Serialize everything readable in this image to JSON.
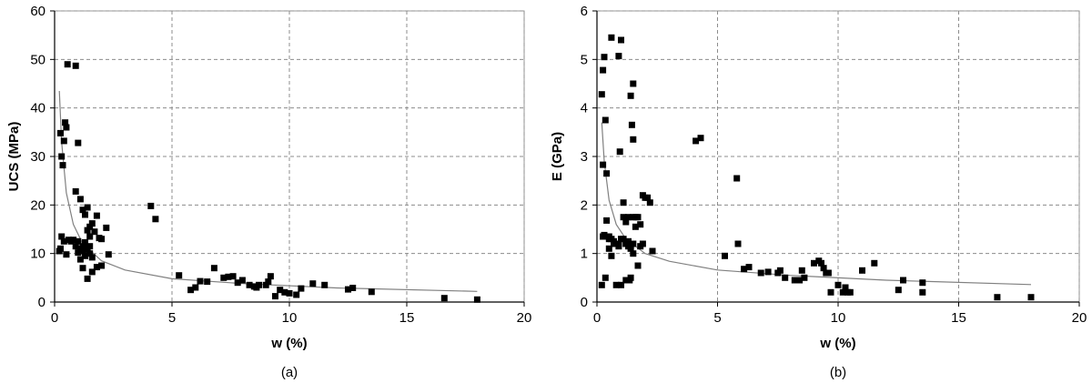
{
  "chart_data": [
    {
      "type": "scatter",
      "caption": "(a)",
      "xlabel": "w (%)",
      "ylabel": "UCS (MPa)",
      "xlim": [
        0,
        20
      ],
      "ylim": [
        0,
        60
      ],
      "xticks": [
        0,
        5,
        10,
        15,
        20
      ],
      "yticks": [
        0,
        10,
        20,
        30,
        40,
        50,
        60
      ],
      "grid": true,
      "trendline": {
        "type": "power",
        "color": "#808080",
        "x": [
          0.2,
          0.3,
          0.5,
          0.8,
          1.2,
          2,
          3,
          5,
          8,
          12,
          18
        ],
        "y": [
          43.5,
          33,
          22.5,
          16,
          12,
          8.5,
          6.6,
          4.8,
          3.8,
          2.9,
          2.2
        ]
      },
      "series": [
        {
          "marker": "square",
          "color": "#000000",
          "x": [
            0.25,
            0.3,
            0.35,
            0.4,
            0.45,
            0.5,
            0.55,
            0.9,
            1.0,
            0.2,
            0.25,
            0.3,
            0.4,
            0.5,
            0.6,
            0.7,
            0.8,
            0.9,
            1.0,
            1.1,
            1.2,
            1.3,
            1.5,
            0.9,
            1.1,
            1.2,
            1.3,
            1.4,
            1.5,
            1.6,
            1.7,
            1.8,
            1.9,
            2.0,
            2.2,
            1.0,
            1.1,
            1.2,
            1.3,
            1.4,
            1.5,
            1.6,
            1.2,
            1.3,
            1.4,
            1.5,
            1.6,
            1.8,
            2.0,
            2.3,
            1.4,
            4.1,
            4.3,
            5.3,
            5.8,
            6.0,
            6.2,
            6.5,
            6.8,
            7.2,
            7.4,
            7.6,
            7.8,
            8.0,
            8.3,
            8.5,
            8.7,
            9.0,
            9.2,
            9.4,
            9.6,
            9.8,
            10.0,
            10.3,
            10.5,
            11.0,
            11.5,
            12.5,
            12.7,
            13.5,
            16.6,
            18.0,
            8.6,
            9.1
          ],
          "y": [
            34.8,
            30,
            28.2,
            33.2,
            37,
            36,
            49,
            48.7,
            32.8,
            10.5,
            11,
            13.5,
            12.5,
            9.8,
            12.8,
            12.5,
            12.8,
            11.5,
            12.5,
            11,
            10.5,
            12,
            11.5,
            22.8,
            21.2,
            19,
            18,
            19.5,
            15.5,
            16.2,
            14.5,
            17.8,
            13.2,
            13,
            15.3,
            10.2,
            8.8,
            7,
            9.5,
            10.8,
            10,
            9.2,
            11.5,
            12.3,
            14.8,
            13.5,
            6.2,
            7.2,
            7.5,
            9.8,
            4.8,
            19.8,
            17.1,
            5.5,
            2.5,
            3,
            4.3,
            4.2,
            7,
            5,
            5.2,
            5.3,
            4,
            4.5,
            3.5,
            3.2,
            3.5,
            3.5,
            5.3,
            1.2,
            2.5,
            2,
            1.8,
            1.5,
            2.8,
            3.8,
            3.5,
            2.6,
            2.9,
            2.1,
            0.8,
            0.5,
            3,
            4.2
          ]
        }
      ]
    },
    {
      "type": "scatter",
      "caption": "(b)",
      "xlabel": "w (%)",
      "ylabel": "E (GPa)",
      "xlim": [
        0,
        20
      ],
      "ylim": [
        0,
        6
      ],
      "xticks": [
        0,
        5,
        10,
        15,
        20
      ],
      "yticks": [
        0,
        1,
        2,
        3,
        4,
        5,
        6
      ],
      "grid": true,
      "trendline": {
        "type": "power",
        "color": "#808080",
        "x": [
          0.2,
          0.3,
          0.5,
          0.8,
          1.2,
          2,
          3,
          5,
          8,
          12,
          18
        ],
        "y": [
          3.7,
          2.9,
          2.1,
          1.6,
          1.3,
          1.0,
          0.84,
          0.66,
          0.55,
          0.45,
          0.36
        ]
      },
      "series": [
        {
          "marker": "square",
          "color": "#000000",
          "x": [
            0.2,
            0.25,
            0.3,
            0.35,
            0.4,
            0.6,
            0.9,
            1.0,
            0.25,
            0.3,
            0.4,
            0.5,
            0.7,
            0.9,
            1.1,
            1.4,
            1.5,
            1.45,
            1.5,
            0.25,
            0.35,
            0.5,
            0.5,
            0.6,
            0.7,
            0.9,
            1.0,
            1.1,
            1.2,
            1.3,
            1.4,
            1.5,
            1.6,
            1.8,
            2.1,
            1.1,
            1.2,
            1.3,
            1.5,
            1.6,
            1.7,
            1.8,
            1.9,
            2.0,
            2.2,
            1.2,
            1.3,
            1.4,
            1.5,
            1.7,
            1.9,
            2.3,
            1.0,
            1.4,
            0.2,
            0.35,
            0.6,
            0.8,
            1.2,
            1.35,
            0.95,
            4.1,
            4.3,
            5.8,
            5.85,
            5.3,
            6.1,
            6.3,
            6.8,
            7.1,
            7.5,
            7.6,
            7.8,
            8.2,
            8.4,
            8.5,
            8.6,
            9.0,
            9.2,
            9.3,
            9.4,
            9.5,
            9.6,
            10.0,
            10.2,
            10.3,
            10.5,
            11.0,
            11.5,
            12.5,
            12.7,
            13.5,
            13.5,
            16.6,
            18.0,
            9.7,
            10.4
          ],
          "y": [
            4.28,
            4.78,
            5.05,
            3.75,
            2.65,
            5.45,
            5.07,
            5.4,
            2.83,
            1.38,
            1.68,
            1.3,
            1.25,
            1.2,
            1.75,
            4.25,
            4.5,
            3.65,
            3.35,
            1.35,
            1.35,
            1.35,
            1.1,
            1.3,
            1.2,
            1.15,
            1.3,
            1.3,
            1.2,
            1.25,
            1.15,
            1.2,
            1.75,
            1.15,
            2.15,
            2.05,
            1.65,
            1.75,
            1.75,
            1.55,
            1.75,
            1.6,
            2.2,
            2.15,
            2.05,
            1.2,
            1.15,
            1.1,
            1.0,
            0.75,
            1.2,
            1.05,
            0.35,
            0.5,
            0.35,
            0.5,
            0.95,
            0.35,
            0.45,
            0.45,
            3.1,
            3.32,
            3.38,
            2.55,
            1.2,
            0.95,
            0.68,
            0.72,
            0.6,
            0.62,
            0.6,
            0.65,
            0.5,
            0.45,
            0.45,
            0.65,
            0.5,
            0.8,
            0.85,
            0.8,
            0.7,
            0.6,
            0.6,
            0.35,
            0.2,
            0.3,
            0.2,
            0.65,
            0.8,
            0.25,
            0.45,
            0.4,
            0.2,
            0.1,
            0.1,
            0.2,
            0.2
          ]
        }
      ]
    }
  ]
}
